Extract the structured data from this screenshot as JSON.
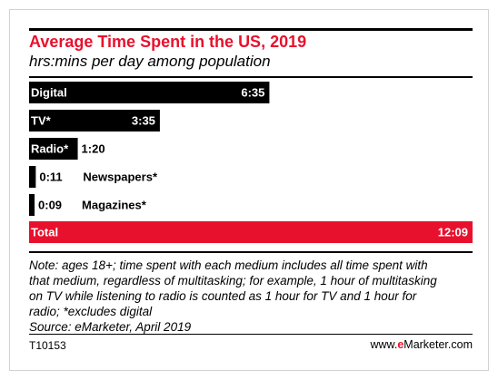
{
  "header": {
    "title": "Average Time Spent in the US, 2019",
    "subtitle": "hrs:mins per day among population"
  },
  "colors": {
    "bar": "#000000",
    "total_bar": "#e8112d",
    "title": "#e8112d"
  },
  "chart_data": {
    "type": "bar",
    "orientation": "horizontal",
    "unit": "hrs:mins per day",
    "categories": [
      "Digital",
      "TV*",
      "Radio*",
      "Newspapers*",
      "Magazines*",
      "Total"
    ],
    "values": [
      395,
      215,
      80,
      11,
      9,
      729
    ],
    "value_labels": [
      "6:35",
      "3:35",
      "1:20",
      "0:11",
      "0:09",
      "12:09"
    ],
    "highlight": "Total"
  },
  "notes": {
    "lines": [
      "Note: ages 18+; time spent with each medium includes all time spent with",
      "that medium, regardless of multitasking; for example, 1 hour of multitasking",
      "on TV while listening to radio is counted as 1 hour for TV and 1 hour for",
      "radio; *excludes digital",
      "Source: eMarketer, April 2019"
    ]
  },
  "footer": {
    "code": "T10153",
    "brand_prefix": "www.",
    "brand_mark": "e",
    "brand_suffix": "Marketer.com"
  }
}
